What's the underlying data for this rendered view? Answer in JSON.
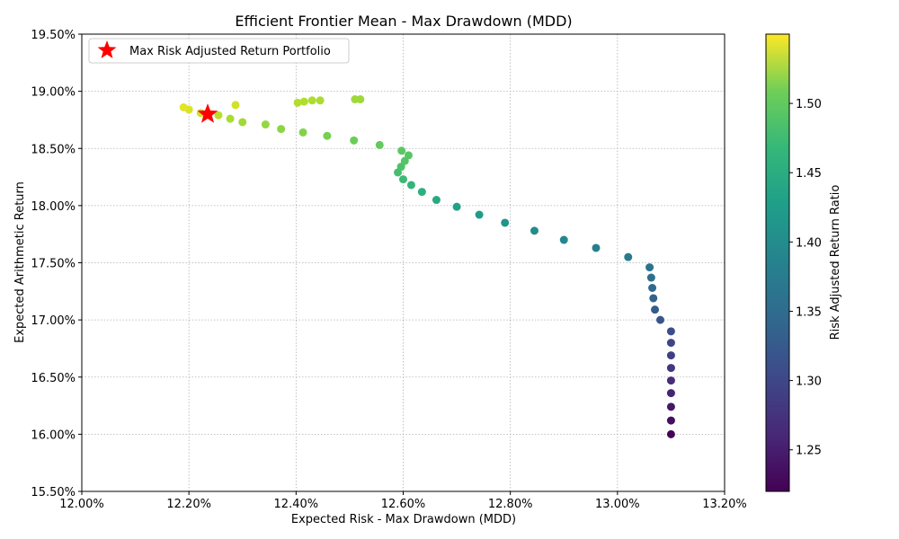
{
  "chart_data": {
    "type": "scatter",
    "title": "Efficient Frontier Mean - Max Drawdown (MDD)",
    "xlabel": "Expected Risk - Max Drawdown (MDD)",
    "ylabel": "Expected Arithmetic Return",
    "xlim": [
      12.0,
      13.2
    ],
    "ylim": [
      15.5,
      19.5
    ],
    "xticks": [
      "12.00%",
      "12.20%",
      "12.40%",
      "12.60%",
      "12.80%",
      "13.00%",
      "13.20%"
    ],
    "yticks": [
      "15.50%",
      "16.00%",
      "16.50%",
      "17.00%",
      "17.50%",
      "18.00%",
      "18.50%",
      "19.00%",
      "19.50%"
    ],
    "grid": true,
    "legend": {
      "placement": "upper-left",
      "entries": [
        "Max Risk Adjusted Return Portfolio"
      ]
    },
    "colorbar": {
      "label": "Risk Adjusted Return Ratio",
      "range": [
        1.22,
        1.55
      ],
      "colormap": "viridis",
      "ticks": [
        "1.25",
        "1.30",
        "1.35",
        "1.40",
        "1.45",
        "1.50"
      ]
    },
    "series": [
      {
        "points": [
          {
            "x": 13.1,
            "y": 16.0,
            "c": 1.222
          },
          {
            "x": 13.1,
            "y": 16.12,
            "c": 1.232
          },
          {
            "x": 13.1,
            "y": 16.24,
            "c": 1.242
          },
          {
            "x": 13.1,
            "y": 16.36,
            "c": 1.252
          },
          {
            "x": 13.1,
            "y": 16.47,
            "c": 1.262
          },
          {
            "x": 13.1,
            "y": 16.58,
            "c": 1.272
          },
          {
            "x": 13.1,
            "y": 16.69,
            "c": 1.281
          },
          {
            "x": 13.1,
            "y": 16.8,
            "c": 1.29
          },
          {
            "x": 13.1,
            "y": 16.9,
            "c": 1.299
          },
          {
            "x": 13.08,
            "y": 17.0,
            "c": 1.308
          },
          {
            "x": 13.07,
            "y": 17.09,
            "c": 1.316
          },
          {
            "x": 13.067,
            "y": 17.19,
            "c": 1.324
          },
          {
            "x": 13.065,
            "y": 17.28,
            "c": 1.332
          },
          {
            "x": 13.063,
            "y": 17.37,
            "c": 1.34
          },
          {
            "x": 13.06,
            "y": 17.46,
            "c": 1.347
          },
          {
            "x": 13.02,
            "y": 17.55,
            "c": 1.355
          },
          {
            "x": 12.96,
            "y": 17.63,
            "c": 1.363
          },
          {
            "x": 12.9,
            "y": 17.7,
            "c": 1.372
          },
          {
            "x": 12.845,
            "y": 17.78,
            "c": 1.381
          },
          {
            "x": 12.79,
            "y": 17.85,
            "c": 1.39
          },
          {
            "x": 12.742,
            "y": 17.92,
            "c": 1.399
          },
          {
            "x": 12.7,
            "y": 17.99,
            "c": 1.409
          },
          {
            "x": 12.662,
            "y": 18.05,
            "c": 1.419
          },
          {
            "x": 12.635,
            "y": 18.12,
            "c": 1.429
          },
          {
            "x": 12.615,
            "y": 18.18,
            "c": 1.437
          },
          {
            "x": 12.6,
            "y": 18.23,
            "c": 1.444
          },
          {
            "x": 12.59,
            "y": 18.29,
            "c": 1.451
          },
          {
            "x": 12.596,
            "y": 18.34,
            "c": 1.456
          },
          {
            "x": 12.603,
            "y": 18.39,
            "c": 1.46
          },
          {
            "x": 12.61,
            "y": 18.44,
            "c": 1.462
          },
          {
            "x": 12.597,
            "y": 18.48,
            "c": 1.465
          },
          {
            "x": 12.556,
            "y": 18.53,
            "c": 1.47
          },
          {
            "x": 12.508,
            "y": 18.57,
            "c": 1.475
          },
          {
            "x": 12.458,
            "y": 18.61,
            "c": 1.481
          },
          {
            "x": 12.413,
            "y": 18.64,
            "c": 1.487
          },
          {
            "x": 12.372,
            "y": 18.67,
            "c": 1.492
          },
          {
            "x": 12.343,
            "y": 18.71,
            "c": 1.497
          },
          {
            "x": 12.3,
            "y": 18.73,
            "c": 1.503
          },
          {
            "x": 12.277,
            "y": 18.76,
            "c": 1.508
          },
          {
            "x": 12.255,
            "y": 18.79,
            "c": 1.515
          },
          {
            "x": 12.222,
            "y": 18.81,
            "c": 1.525
          },
          {
            "x": 12.2,
            "y": 18.84,
            "c": 1.532
          },
          {
            "x": 12.19,
            "y": 18.86,
            "c": 1.536
          },
          {
            "x": 12.287,
            "y": 18.88,
            "c": 1.527
          },
          {
            "x": 12.403,
            "y": 18.9,
            "c": 1.512
          },
          {
            "x": 12.415,
            "y": 18.91,
            "c": 1.511
          },
          {
            "x": 12.43,
            "y": 18.92,
            "c": 1.51
          },
          {
            "x": 12.445,
            "y": 18.92,
            "c": 1.508
          },
          {
            "x": 12.51,
            "y": 18.93,
            "c": 1.502
          },
          {
            "x": 12.52,
            "y": 18.93,
            "c": 1.501
          }
        ]
      }
    ],
    "highlight": {
      "label": "Max Risk Adjusted Return Portfolio",
      "x": 12.235,
      "y": 18.8,
      "color": "#ff0000",
      "marker": "star"
    }
  }
}
